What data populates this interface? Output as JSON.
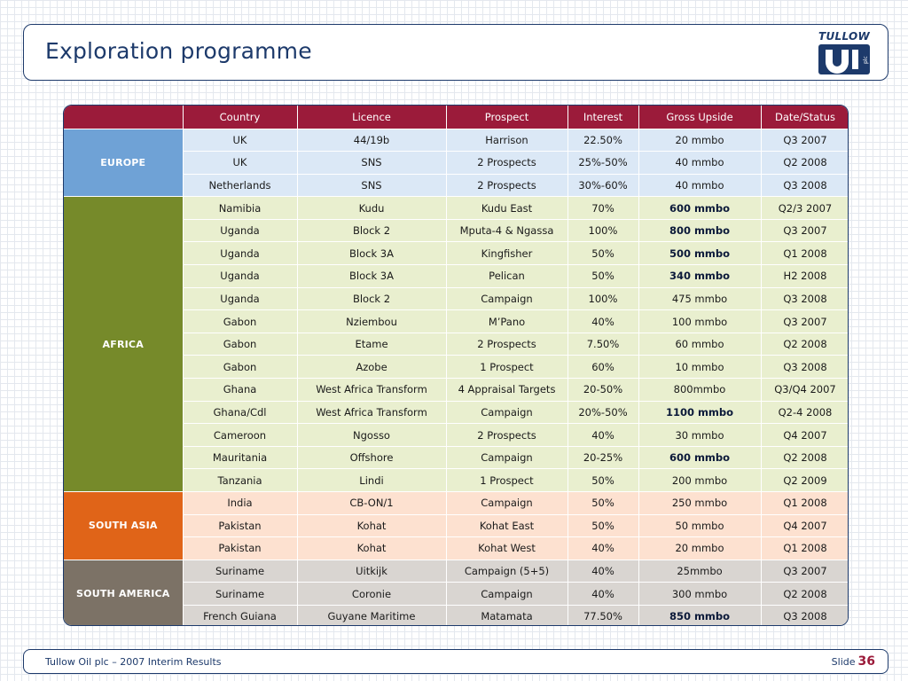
{
  "slide": {
    "title": "Exploration programme",
    "logo_text": "TULLOW",
    "footer_text": "Tullow Oil plc – 2007 Interim Results",
    "slide_label": "Slide",
    "slide_number": "36"
  },
  "table": {
    "headers": [
      "",
      "Country",
      "Licence",
      "Prospect",
      "Interest",
      "Gross Upside",
      "Date/Status"
    ],
    "regions": [
      {
        "name": "EUROPE",
        "color": "#6fa2d6",
        "rows": [
          {
            "country": "UK",
            "licence": "44/19b",
            "prospect": "Harrison",
            "interest": "22.50%",
            "gross_upside": "20 mmbo",
            "bold": false,
            "date": "Q3 2007"
          },
          {
            "country": "UK",
            "licence": "SNS",
            "prospect": "2 Prospects",
            "interest": "25%-50%",
            "gross_upside": "40 mmbo",
            "bold": false,
            "date": "Q2 2008"
          },
          {
            "country": "Netherlands",
            "licence": "SNS",
            "prospect": "2 Prospects",
            "interest": "30%-60%",
            "gross_upside": "40 mmbo",
            "bold": false,
            "date": "Q3 2008"
          }
        ]
      },
      {
        "name": "AFRICA",
        "color": "#768a2a",
        "rows": [
          {
            "country": "Namibia",
            "licence": "Kudu",
            "prospect": "Kudu East",
            "interest": "70%",
            "gross_upside": "600 mmbo",
            "bold": true,
            "date": "Q2/3 2007"
          },
          {
            "country": "Uganda",
            "licence": "Block 2",
            "prospect": "Mputa-4 & Ngassa",
            "interest": "100%",
            "gross_upside": "800 mmbo",
            "bold": true,
            "date": "Q3 2007"
          },
          {
            "country": "Uganda",
            "licence": "Block 3A",
            "prospect": "Kingfisher",
            "interest": "50%",
            "gross_upside": "500 mmbo",
            "bold": true,
            "date": "Q1 2008"
          },
          {
            "country": "Uganda",
            "licence": "Block 3A",
            "prospect": "Pelican",
            "interest": "50%",
            "gross_upside": "340 mmbo",
            "bold": true,
            "date": "H2 2008"
          },
          {
            "country": "Uganda",
            "licence": "Block 2",
            "prospect": "Campaign",
            "interest": "100%",
            "gross_upside": "475 mmbo",
            "bold": false,
            "date": "Q3 2008"
          },
          {
            "country": "Gabon",
            "licence": "Nziembou",
            "prospect": "M’Pano",
            "interest": "40%",
            "gross_upside": "100 mmbo",
            "bold": false,
            "date": "Q3 2007"
          },
          {
            "country": "Gabon",
            "licence": "Etame",
            "prospect": "2 Prospects",
            "interest": "7.50%",
            "gross_upside": "60 mmbo",
            "bold": false,
            "date": "Q2 2008"
          },
          {
            "country": "Gabon",
            "licence": "Azobe",
            "prospect": "1 Prospect",
            "interest": "60%",
            "gross_upside": "10 mmbo",
            "bold": false,
            "date": "Q3 2008"
          },
          {
            "country": "Ghana",
            "licence": "West Africa Transform",
            "prospect": "4 Appraisal Targets",
            "interest": "20-50%",
            "gross_upside": "800mmbo",
            "bold": false,
            "date": "Q3/Q4 2007"
          },
          {
            "country": "Ghana/Cdl",
            "licence": "West Africa Transform",
            "prospect": "Campaign",
            "interest": "20%-50%",
            "gross_upside": "1100 mmbo",
            "bold": true,
            "date": "Q2-4 2008"
          },
          {
            "country": "Cameroon",
            "licence": "Ngosso",
            "prospect": "2 Prospects",
            "interest": "40%",
            "gross_upside": "30 mmbo",
            "bold": false,
            "date": "Q4 2007"
          },
          {
            "country": "Mauritania",
            "licence": "Offshore",
            "prospect": "Campaign",
            "interest": "20-25%",
            "gross_upside": "600 mmbo",
            "bold": true,
            "date": "Q2 2008"
          },
          {
            "country": "Tanzania",
            "licence": "Lindi",
            "prospect": "1 Prospect",
            "interest": "50%",
            "gross_upside": "200 mmbo",
            "bold": false,
            "date": "Q2 2009"
          }
        ]
      },
      {
        "name": "SOUTH ASIA",
        "color": "#e06418",
        "rows": [
          {
            "country": "India",
            "licence": "CB-ON/1",
            "prospect": "Campaign",
            "interest": "50%",
            "gross_upside": "250 mmbo",
            "bold": false,
            "date": "Q1 2008"
          },
          {
            "country": "Pakistan",
            "licence": "Kohat",
            "prospect": "Kohat East",
            "interest": "50%",
            "gross_upside": "50 mmbo",
            "bold": false,
            "date": "Q4 2007"
          },
          {
            "country": "Pakistan",
            "licence": "Kohat",
            "prospect": "Kohat West",
            "interest": "40%",
            "gross_upside": "20 mmbo",
            "bold": false,
            "date": "Q1 2008"
          }
        ]
      },
      {
        "name": "SOUTH AMERICA",
        "color": "#7c7266",
        "rows": [
          {
            "country": "Suriname",
            "licence": "Uitkijk",
            "prospect": "Campaign (5+5)",
            "interest": "40%",
            "gross_upside": "25mmbo",
            "bold": false,
            "date": "Q3 2007"
          },
          {
            "country": "Suriname",
            "licence": "Coronie",
            "prospect": "Campaign",
            "interest": "40%",
            "gross_upside": "300 mmbo",
            "bold": false,
            "date": "Q2 2008"
          },
          {
            "country": "French Guiana",
            "licence": "Guyane Maritime",
            "prospect": "Matamata",
            "interest": "77.50%",
            "gross_upside": "850 mmbo",
            "bold": true,
            "date": "Q3 2008"
          }
        ]
      }
    ]
  }
}
